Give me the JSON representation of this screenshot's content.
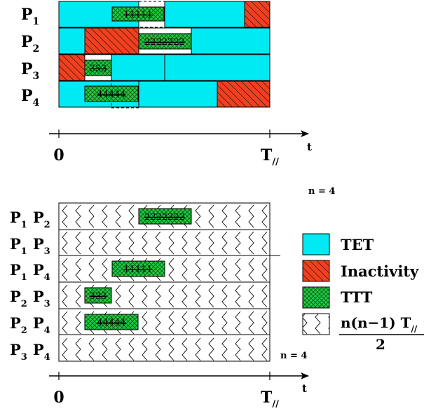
{
  "colors": {
    "tet": "#00eaf4",
    "inactivity": "#f04020",
    "ttt": "#22cc44",
    "outline": "#000000"
  },
  "top_diagram": {
    "rows": [
      {
        "p": "P",
        "sub": "1"
      },
      {
        "p": "P",
        "sub": "2"
      },
      {
        "p": "P",
        "sub": "3"
      },
      {
        "p": "P",
        "sub": "4"
      }
    ],
    "tasks": [
      "11111",
      "2222222",
      "333",
      "44444"
    ]
  },
  "bottom_diagram": {
    "pairs": [
      {
        "a": "P",
        "a_sub": "1",
        "b": "P",
        "b_sub": "2"
      },
      {
        "a": "P",
        "a_sub": "1",
        "b": "P",
        "b_sub": "3"
      },
      {
        "a": "P",
        "a_sub": "1",
        "b": "P",
        "b_sub": "4"
      },
      {
        "a": "P",
        "a_sub": "2",
        "b": "P",
        "b_sub": "3"
      },
      {
        "a": "P",
        "a_sub": "2",
        "b": "P",
        "b_sub": "4"
      },
      {
        "a": "P",
        "a_sub": "3",
        "b": "P",
        "b_sub": "4"
      }
    ],
    "tasks": [
      "2222222",
      "11111",
      "333",
      "44444"
    ],
    "n_label_top": "n = 4",
    "n_label_bottom": "n = 4"
  },
  "axis": {
    "origin": "0",
    "end_main": "T",
    "end_sub": "//",
    "var": "t"
  },
  "legend": {
    "tet": "TET",
    "inactivity": "Inactivity",
    "ttt": "TTT",
    "formula_num_main": "n(n−1) T",
    "formula_num_sub": "//",
    "formula_den": "2"
  }
}
